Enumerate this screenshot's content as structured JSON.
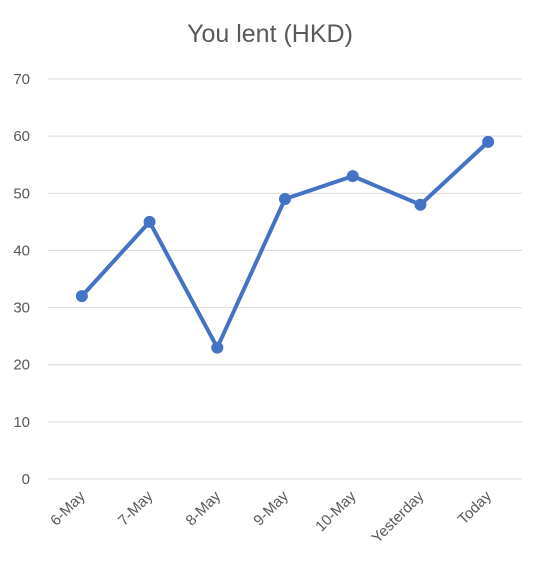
{
  "chart_data": {
    "type": "line",
    "title": "You lent (HKD)",
    "xlabel": "",
    "ylabel": "",
    "categories": [
      "6-May",
      "7-May",
      "8-May",
      "9-May",
      "10-May",
      "Yesterday",
      "Today"
    ],
    "series": [
      {
        "values": [
          32,
          45,
          23,
          49,
          53,
          48,
          59
        ]
      }
    ],
    "ylim": [
      0,
      70
    ],
    "yticks": [
      0,
      10,
      20,
      30,
      40,
      50,
      60,
      70
    ],
    "grid": true,
    "legend": "none",
    "colors": {
      "series": "#4472c4",
      "grid": "#d9d9d9",
      "text": "#595959"
    }
  }
}
